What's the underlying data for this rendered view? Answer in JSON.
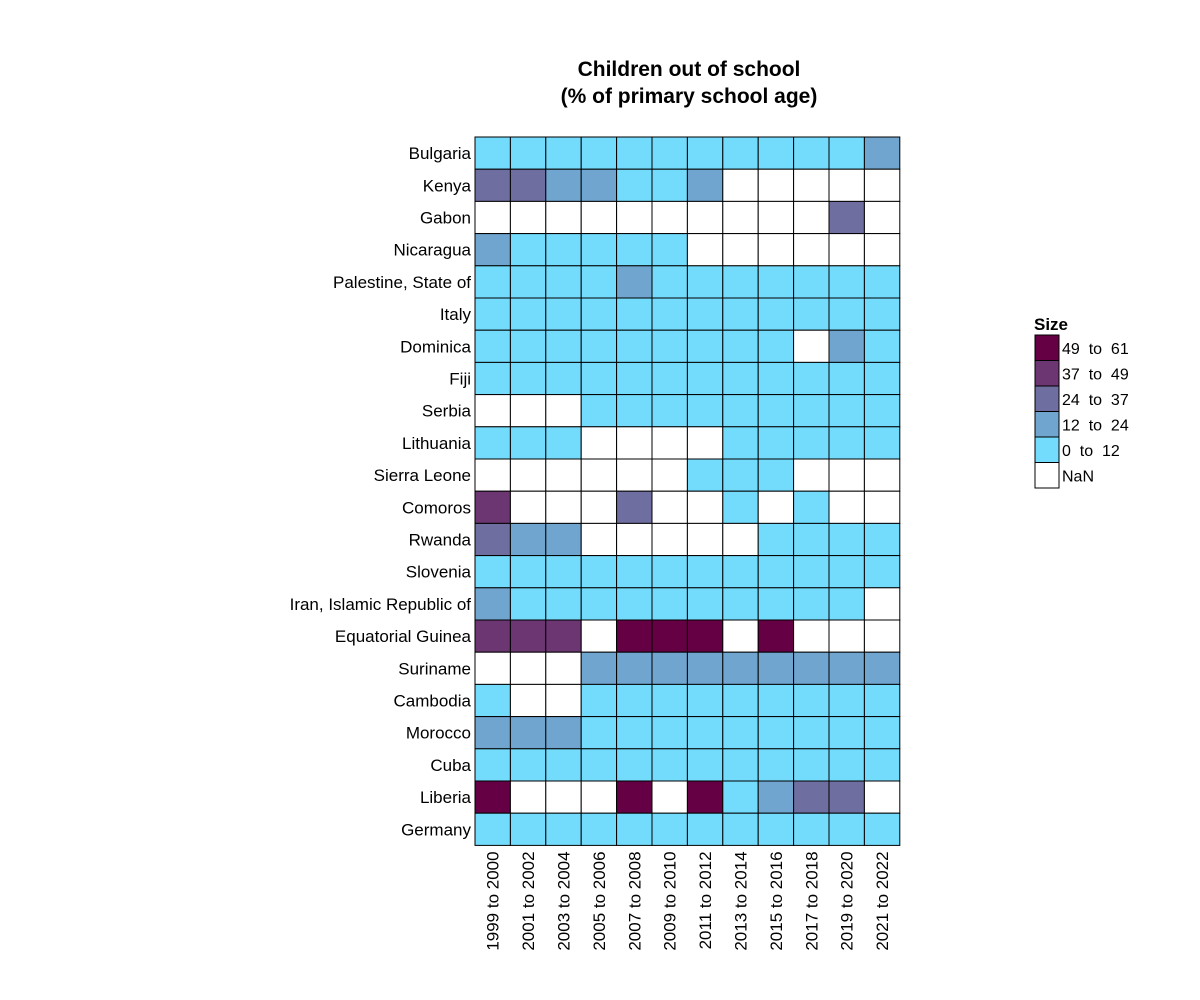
{
  "chart_data": {
    "type": "heatmap",
    "title": [
      "Children out of school",
      "(% of primary school age)"
    ],
    "rows": [
      "Bulgaria",
      "Kenya",
      "Gabon",
      "Nicaragua",
      "Palestine, State of",
      "Italy",
      "Dominica",
      "Fiji",
      "Serbia",
      "Lithuania",
      "Sierra Leone",
      "Comoros",
      "Rwanda",
      "Slovenia",
      "Iran, Islamic Republic of",
      "Equatorial Guinea",
      "Suriname",
      "Cambodia",
      "Morocco",
      "Cuba",
      "Liberia",
      "Germany"
    ],
    "columns": [
      "1999 to 2000",
      "2001 to 2002",
      "2003 to 2004",
      "2005 to 2006",
      "2007 to 2008",
      "2009 to 2010",
      "2011 to 2012",
      "2013 to 2014",
      "2015 to 2016",
      "2017 to 2018",
      "2019 to 2020",
      "2021 to 2022"
    ],
    "bins": [
      "0  to  12",
      "12  to  24",
      "24  to  37",
      "37  to  49",
      "49  to  61",
      "NaN"
    ],
    "values": [
      [
        "0  to  12",
        "0  to  12",
        "0  to  12",
        "0  to  12",
        "0  to  12",
        "0  to  12",
        "0  to  12",
        "0  to  12",
        "0  to  12",
        "0  to  12",
        "0  to  12",
        "12  to  24"
      ],
      [
        "24  to  37",
        "24  to  37",
        "12  to  24",
        "12  to  24",
        "0  to  12",
        "0  to  12",
        "12  to  24",
        "NaN",
        "NaN",
        "NaN",
        "NaN",
        "NaN"
      ],
      [
        "NaN",
        "NaN",
        "NaN",
        "NaN",
        "NaN",
        "NaN",
        "NaN",
        "NaN",
        "NaN",
        "NaN",
        "24  to  37",
        "NaN"
      ],
      [
        "12  to  24",
        "0  to  12",
        "0  to  12",
        "0  to  12",
        "0  to  12",
        "0  to  12",
        "NaN",
        "NaN",
        "NaN",
        "NaN",
        "NaN",
        "NaN"
      ],
      [
        "0  to  12",
        "0  to  12",
        "0  to  12",
        "0  to  12",
        "12  to  24",
        "0  to  12",
        "0  to  12",
        "0  to  12",
        "0  to  12",
        "0  to  12",
        "0  to  12",
        "0  to  12"
      ],
      [
        "0  to  12",
        "0  to  12",
        "0  to  12",
        "0  to  12",
        "0  to  12",
        "0  to  12",
        "0  to  12",
        "0  to  12",
        "0  to  12",
        "0  to  12",
        "0  to  12",
        "0  to  12"
      ],
      [
        "0  to  12",
        "0  to  12",
        "0  to  12",
        "0  to  12",
        "0  to  12",
        "0  to  12",
        "0  to  12",
        "0  to  12",
        "0  to  12",
        "NaN",
        "12  to  24",
        "0  to  12"
      ],
      [
        "0  to  12",
        "0  to  12",
        "0  to  12",
        "0  to  12",
        "0  to  12",
        "0  to  12",
        "0  to  12",
        "0  to  12",
        "0  to  12",
        "0  to  12",
        "0  to  12",
        "0  to  12"
      ],
      [
        "NaN",
        "NaN",
        "NaN",
        "0  to  12",
        "0  to  12",
        "0  to  12",
        "0  to  12",
        "0  to  12",
        "0  to  12",
        "0  to  12",
        "0  to  12",
        "0  to  12"
      ],
      [
        "0  to  12",
        "0  to  12",
        "0  to  12",
        "NaN",
        "NaN",
        "NaN",
        "NaN",
        "0  to  12",
        "0  to  12",
        "0  to  12",
        "0  to  12",
        "0  to  12"
      ],
      [
        "NaN",
        "NaN",
        "NaN",
        "NaN",
        "NaN",
        "NaN",
        "0  to  12",
        "0  to  12",
        "0  to  12",
        "NaN",
        "NaN",
        "NaN"
      ],
      [
        "37  to  49",
        "NaN",
        "NaN",
        "NaN",
        "24  to  37",
        "NaN",
        "NaN",
        "0  to  12",
        "NaN",
        "0  to  12",
        "NaN",
        "NaN"
      ],
      [
        "24  to  37",
        "12  to  24",
        "12  to  24",
        "NaN",
        "NaN",
        "NaN",
        "NaN",
        "NaN",
        "0  to  12",
        "0  to  12",
        "0  to  12",
        "0  to  12"
      ],
      [
        "0  to  12",
        "0  to  12",
        "0  to  12",
        "0  to  12",
        "0  to  12",
        "0  to  12",
        "0  to  12",
        "0  to  12",
        "0  to  12",
        "0  to  12",
        "0  to  12",
        "0  to  12"
      ],
      [
        "12  to  24",
        "0  to  12",
        "0  to  12",
        "0  to  12",
        "0  to  12",
        "0  to  12",
        "0  to  12",
        "0  to  12",
        "0  to  12",
        "0  to  12",
        "0  to  12",
        "NaN"
      ],
      [
        "37  to  49",
        "37  to  49",
        "37  to  49",
        "NaN",
        "49  to  61",
        "49  to  61",
        "49  to  61",
        "NaN",
        "49  to  61",
        "NaN",
        "NaN",
        "NaN"
      ],
      [
        "NaN",
        "NaN",
        "NaN",
        "12  to  24",
        "12  to  24",
        "12  to  24",
        "12  to  24",
        "12  to  24",
        "12  to  24",
        "12  to  24",
        "12  to  24",
        "12  to  24"
      ],
      [
        "0  to  12",
        "NaN",
        "NaN",
        "0  to  12",
        "0  to  12",
        "0  to  12",
        "0  to  12",
        "0  to  12",
        "0  to  12",
        "0  to  12",
        "0  to  12",
        "0  to  12"
      ],
      [
        "12  to  24",
        "12  to  24",
        "12  to  24",
        "0  to  12",
        "0  to  12",
        "0  to  12",
        "0  to  12",
        "0  to  12",
        "0  to  12",
        "0  to  12",
        "0  to  12",
        "0  to  12"
      ],
      [
        "0  to  12",
        "0  to  12",
        "0  to  12",
        "0  to  12",
        "0  to  12",
        "0  to  12",
        "0  to  12",
        "0  to  12",
        "0  to  12",
        "0  to  12",
        "0  to  12",
        "0  to  12"
      ],
      [
        "49  to  61",
        "NaN",
        "NaN",
        "NaN",
        "49  to  61",
        "NaN",
        "49  to  61",
        "0  to  12",
        "12  to  24",
        "24  to  37",
        "24  to  37",
        "NaN"
      ],
      [
        "0  to  12",
        "0  to  12",
        "0  to  12",
        "0  to  12",
        "0  to  12",
        "0  to  12",
        "0  to  12",
        "0  to  12",
        "0  to  12",
        "0  to  12",
        "0  to  12",
        "0  to  12"
      ]
    ],
    "legend": {
      "title": "Size",
      "entries": [
        {
          "label": "49  to  61",
          "color": "#660044"
        },
        {
          "label": "37  to  49",
          "color": "#6b3672"
        },
        {
          "label": "24  to  37",
          "color": "#6e6ea0"
        },
        {
          "label": "12  to  24",
          "color": "#70a5d0"
        },
        {
          "label": "0  to  12",
          "color": "#73dbfc"
        },
        {
          "label": "NaN",
          "color": "#ffffff"
        }
      ],
      "placement": "right"
    }
  }
}
